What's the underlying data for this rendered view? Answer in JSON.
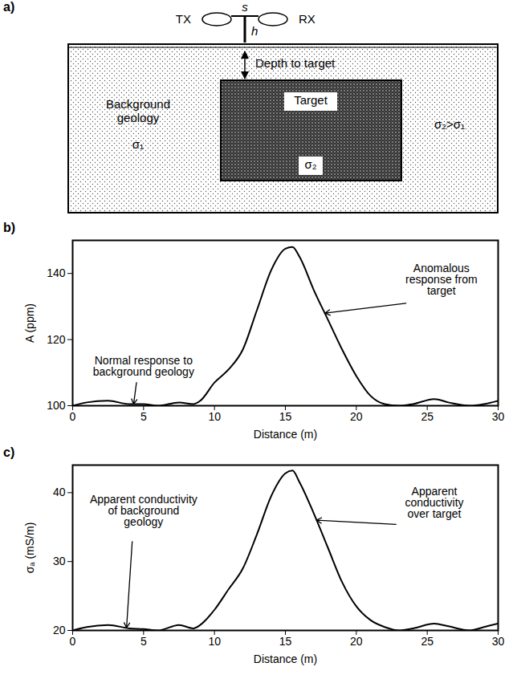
{
  "diagram": {
    "panel": "a)",
    "transmitter": "TX",
    "receiver": "RX",
    "separation": "s",
    "height": "h",
    "depth": "Depth to target",
    "background": "Background\ngeology",
    "background_conductivity": "σ₁",
    "target": "Target",
    "target_conductivity": "σ₂",
    "contrast": "σ₂>σ₁"
  },
  "chart_data": [
    {
      "panel": "b)",
      "type": "line",
      "color": "#000000",
      "xlabel": "Distance (m)",
      "ylabel": "A (ppm)",
      "x": [
        0,
        1,
        2.5,
        4,
        5,
        6,
        7.5,
        8.5,
        9,
        10,
        11,
        12,
        13,
        14,
        15,
        15.5,
        16,
        17,
        18,
        19,
        20,
        21,
        22,
        23,
        24,
        25.5,
        26.5,
        28,
        29,
        30
      ],
      "values": [
        100,
        101,
        101.5,
        100.5,
        100.5,
        100,
        101,
        100.5,
        101.5,
        107,
        111,
        117,
        129,
        141,
        147.5,
        148,
        145,
        135,
        126,
        117,
        109,
        103,
        100.5,
        100,
        100.5,
        102,
        101,
        100,
        100.5,
        101.5
      ],
      "xlim": [
        0,
        30
      ],
      "xticks": [
        0,
        5,
        10,
        15,
        20,
        25,
        30
      ],
      "ylim": [
        100,
        150
      ],
      "yticks": [
        100,
        120,
        140
      ],
      "annotations": [
        {
          "text": "Normal response to\nbackground geology",
          "x": 4.3,
          "y": 100.5
        },
        {
          "text": "Anomalous\nresponse from\ntarget",
          "x": 17.8,
          "y": 128
        }
      ]
    },
    {
      "panel": "c)",
      "type": "line",
      "color": "#000000",
      "xlabel": "Distance (m)",
      "ylabel": "σₐ (mS/m)",
      "x": [
        0,
        1,
        2.5,
        4,
        5,
        6,
        7.5,
        8.5,
        9,
        10,
        11,
        12,
        13,
        14,
        15,
        15.5,
        16,
        17,
        18,
        19,
        20,
        21,
        22,
        23,
        24,
        25.5,
        26.5,
        28,
        29,
        30
      ],
      "values": [
        20,
        20.5,
        20.8,
        20.3,
        20.2,
        20,
        20.8,
        20.3,
        20.8,
        23,
        26,
        29,
        34,
        39.5,
        42.8,
        43.2,
        41.5,
        37,
        32,
        27,
        23.5,
        21.5,
        20.5,
        20,
        20.3,
        21,
        20.6,
        20,
        20.5,
        21
      ],
      "xlim": [
        0,
        30
      ],
      "xticks": [
        0,
        5,
        10,
        15,
        20,
        25,
        30
      ],
      "ylim": [
        20,
        44
      ],
      "yticks": [
        20,
        30,
        40
      ],
      "annotations": [
        {
          "text": "Apparent conductivity\nof background\ngeology",
          "x": 3.8,
          "y": 20.4
        },
        {
          "text": "Apparent\nconductivity\nover target",
          "x": 17.2,
          "y": 36
        }
      ]
    }
  ]
}
